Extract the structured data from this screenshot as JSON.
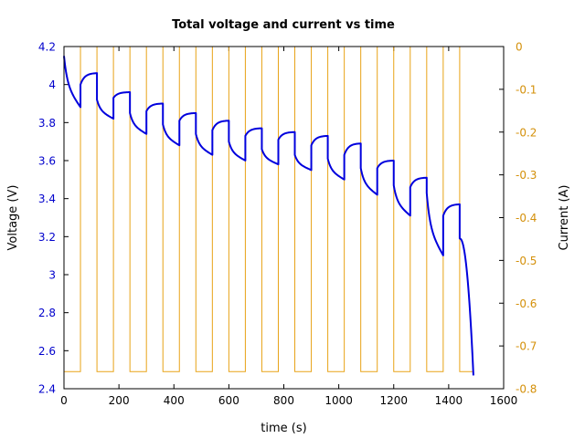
{
  "chart_data": {
    "type": "line",
    "title": "Total voltage and current vs time",
    "xlabel": "time (s)",
    "ylabel": "Voltage (V)",
    "y2label": "Current (A)",
    "xlim": [
      0,
      1600
    ],
    "ylim": [
      2.4,
      4.2
    ],
    "y2lim": [
      -0.8,
      0
    ],
    "xticks": [
      0,
      200,
      400,
      600,
      800,
      1000,
      1200,
      1400,
      1600
    ],
    "xtick_labels": [
      "0",
      "200",
      "400",
      "600",
      "800",
      "1000",
      "1200",
      "1400",
      "1600"
    ],
    "yticks": [
      2.4,
      2.6,
      2.8,
      3,
      3.2,
      3.4,
      3.6,
      3.8,
      4,
      4.2
    ],
    "ytick_labels": [
      "2.4",
      "2.6",
      "2.8",
      "3",
      "3.2",
      "3.4",
      "3.6",
      "3.8",
      "4",
      "4.2"
    ],
    "y2ticks": [
      0,
      -0.1,
      -0.2,
      -0.3,
      -0.4,
      -0.5,
      -0.6,
      -0.7,
      -0.8
    ],
    "y2tick_labels": [
      "0",
      "-0.1",
      "-0.2",
      "-0.3",
      "-0.4",
      "-0.5",
      "-0.6",
      "-0.7",
      "-0.8"
    ],
    "grid": false,
    "series": [
      {
        "name": "Voltage",
        "axis": "left",
        "color": "#0000dd",
        "cycles": [
          {
            "t_start": 0,
            "v_start": 4.15,
            "v_end": 3.88,
            "t_rest": 60,
            "v_rest_start": 4.0,
            "v_rest_end": 4.06
          },
          {
            "t_start": 120,
            "v_start": 3.92,
            "v_end": 3.82,
            "t_rest": 180,
            "v_rest_start": 3.93,
            "v_rest_end": 3.96
          },
          {
            "t_start": 240,
            "v_start": 3.85,
            "v_end": 3.74,
            "t_rest": 300,
            "v_rest_start": 3.86,
            "v_rest_end": 3.9
          },
          {
            "t_start": 360,
            "v_start": 3.79,
            "v_end": 3.68,
            "t_rest": 420,
            "v_rest_start": 3.81,
            "v_rest_end": 3.85
          },
          {
            "t_start": 480,
            "v_start": 3.74,
            "v_end": 3.63,
            "t_rest": 540,
            "v_rest_start": 3.76,
            "v_rest_end": 3.81
          },
          {
            "t_start": 600,
            "v_start": 3.7,
            "v_end": 3.6,
            "t_rest": 660,
            "v_rest_start": 3.73,
            "v_rest_end": 3.77
          },
          {
            "t_start": 720,
            "v_start": 3.66,
            "v_end": 3.58,
            "t_rest": 780,
            "v_rest_start": 3.71,
            "v_rest_end": 3.75
          },
          {
            "t_start": 840,
            "v_start": 3.63,
            "v_end": 3.55,
            "t_rest": 900,
            "v_rest_start": 3.68,
            "v_rest_end": 3.73
          },
          {
            "t_start": 960,
            "v_start": 3.61,
            "v_end": 3.5,
            "t_rest": 1020,
            "v_rest_start": 3.63,
            "v_rest_end": 3.69
          },
          {
            "t_start": 1080,
            "v_start": 3.56,
            "v_end": 3.42,
            "t_rest": 1140,
            "v_rest_start": 3.56,
            "v_rest_end": 3.6
          },
          {
            "t_start": 1200,
            "v_start": 3.47,
            "v_end": 3.31,
            "t_rest": 1260,
            "v_rest_start": 3.46,
            "v_rest_end": 3.51
          },
          {
            "t_start": 1320,
            "v_start": 3.43,
            "v_end": 3.1,
            "t_rest": 1380,
            "v_rest_start": 3.31,
            "v_rest_end": 3.37
          },
          {
            "t_start": 1440,
            "v_start": 3.19,
            "v_end": 2.47,
            "t_rest": 1490,
            "v_rest_start": null,
            "v_rest_end": null
          }
        ]
      },
      {
        "name": "Current",
        "axis": "right",
        "color": "#e8a317",
        "discharge_current": -0.76,
        "rest_current": 0,
        "discharge_intervals": [
          [
            0,
            60
          ],
          [
            120,
            180
          ],
          [
            240,
            300
          ],
          [
            360,
            420
          ],
          [
            480,
            540
          ],
          [
            600,
            660
          ],
          [
            720,
            780
          ],
          [
            840,
            900
          ],
          [
            960,
            1020
          ],
          [
            1080,
            1140
          ],
          [
            1200,
            1260
          ],
          [
            1320,
            1380
          ],
          [
            1440,
            1490
          ]
        ]
      }
    ]
  },
  "colors": {
    "left_axis": "#0000cc",
    "right_axis": "#d4900a",
    "frame": "#000000"
  }
}
